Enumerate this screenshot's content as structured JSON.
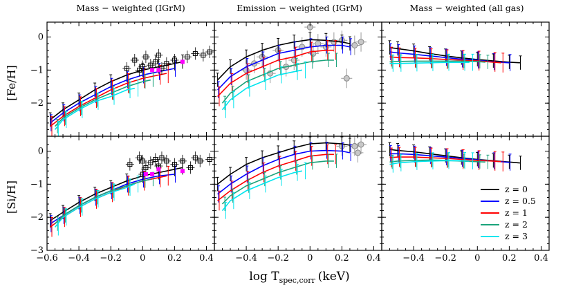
{
  "chart_data": {
    "type": "line",
    "xlabel": "log T",
    "xlabel_sub": "spec,corr",
    "xlabel_unit": "(keV)",
    "column_titles": [
      "Mass − weighted (IGrM)",
      "Emission − weighted (IGrM)",
      "Mass − weighted (all gas)"
    ],
    "row_labels": [
      "[Fe/H]",
      "[Si/H]"
    ],
    "xlim": [
      -0.6,
      0.45
    ],
    "ylim": [
      -3,
      0.45
    ],
    "xticks": [
      -0.6,
      -0.4,
      -0.2,
      0,
      0.2,
      0.4
    ],
    "xtick_labels_first": [
      "−0.6",
      "−0.4",
      "−0.2",
      "0",
      "0.2",
      "0.4"
    ],
    "xtick_labels_rest": [
      "−0.4",
      "−0.2",
      "0",
      "0.2",
      "0.4"
    ],
    "yticks": [
      -3,
      -2,
      -1,
      0
    ],
    "ytick_labels_top": [
      "−2",
      "−1",
      "0"
    ],
    "ytick_labels_bottom": [
      "−3",
      "−2",
      "−1",
      "0"
    ],
    "legend": [
      {
        "label": "z = 0",
        "color": "#000000"
      },
      {
        "label": "z = 0.5",
        "color": "#0000ff"
      },
      {
        "label": "z = 1",
        "color": "#ff0000"
      },
      {
        "label": "z = 2",
        "color": "#1aa37a"
      },
      {
        "label": "z = 3",
        "color": "#00e5ee"
      }
    ],
    "series_colors": [
      "#000000",
      "#0000ff",
      "#ff0000",
      "#1aa37a",
      "#00e5ee"
    ],
    "panels": [
      {
        "id": "fe-mass-igrm",
        "row": 0,
        "col": 0,
        "series": [
          {
            "x": [
              -0.58,
              -0.5,
              -0.4,
              -0.3,
              -0.2,
              -0.1,
              0,
              0.1,
              0.2,
              0.25
            ],
            "y": [
              -2.5,
              -2.2,
              -1.9,
              -1.6,
              -1.35,
              -1.15,
              -1.0,
              -0.9,
              -0.8,
              -0.75
            ]
          },
          {
            "x": [
              -0.58,
              -0.5,
              -0.4,
              -0.3,
              -0.2,
              -0.1,
              0,
              0.1,
              0.2
            ],
            "y": [
              -2.6,
              -2.3,
              -2.0,
              -1.75,
              -1.5,
              -1.3,
              -1.15,
              -1.05,
              -0.95
            ]
          },
          {
            "x": [
              -0.58,
              -0.5,
              -0.4,
              -0.3,
              -0.2,
              -0.1,
              0,
              0.1,
              0.15
            ],
            "y": [
              -2.7,
              -2.4,
              -2.1,
              -1.85,
              -1.6,
              -1.4,
              -1.25,
              -1.15,
              -1.1
            ]
          },
          {
            "x": [
              -0.55,
              -0.5,
              -0.4,
              -0.3,
              -0.2,
              -0.1,
              0,
              0.05
            ],
            "y": [
              -2.7,
              -2.45,
              -2.15,
              -1.9,
              -1.7,
              -1.5,
              -1.35,
              -1.3
            ]
          },
          {
            "x": [
              -0.55,
              -0.5,
              -0.4,
              -0.3,
              -0.2,
              -0.1,
              -0.05
            ],
            "y": [
              -2.8,
              -2.5,
              -2.2,
              -1.95,
              -1.8,
              -1.6,
              -1.55
            ]
          }
        ],
        "obs_black": [
          [
            -0.1,
            -0.95
          ],
          [
            -0.05,
            -0.7
          ],
          [
            0,
            -0.9
          ],
          [
            0.02,
            -0.6
          ],
          [
            0.05,
            -0.85
          ],
          [
            0.08,
            -0.75
          ],
          [
            0.1,
            -0.55
          ],
          [
            0.15,
            -0.8
          ],
          [
            0.2,
            -0.7
          ],
          [
            0.28,
            -0.6
          ],
          [
            0.33,
            -0.5
          ],
          [
            0.38,
            -0.55
          ],
          [
            0.42,
            -0.45
          ],
          [
            -0.02,
            -1.0
          ],
          [
            0.12,
            -0.95
          ]
        ],
        "obs_magenta": [
          [
            0.06,
            -1.0
          ],
          [
            0.1,
            -1.0
          ],
          [
            0.25,
            -0.75
          ]
        ]
      },
      {
        "id": "fe-emission-igrm",
        "row": 0,
        "col": 1,
        "series": [
          {
            "x": [
              -0.58,
              -0.5,
              -0.4,
              -0.3,
              -0.2,
              -0.1,
              0,
              0.1,
              0.2,
              0.25
            ],
            "y": [
              -1.3,
              -0.9,
              -0.6,
              -0.4,
              -0.25,
              -0.15,
              -0.08,
              -0.1,
              -0.15,
              -0.2
            ]
          },
          {
            "x": [
              -0.58,
              -0.5,
              -0.4,
              -0.3,
              -0.2,
              -0.1,
              0,
              0.1,
              0.2,
              0.25
            ],
            "y": [
              -1.6,
              -1.2,
              -0.9,
              -0.7,
              -0.5,
              -0.4,
              -0.3,
              -0.25,
              -0.25,
              -0.3
            ]
          },
          {
            "x": [
              -0.58,
              -0.5,
              -0.4,
              -0.3,
              -0.2,
              -0.1,
              0,
              0.1,
              0.15
            ],
            "y": [
              -1.8,
              -1.4,
              -1.1,
              -0.9,
              -0.7,
              -0.6,
              -0.45,
              -0.4,
              -0.4
            ]
          },
          {
            "x": [
              -0.55,
              -0.5,
              -0.4,
              -0.3,
              -0.2,
              -0.1,
              0,
              0.1,
              0.15
            ],
            "y": [
              -2.0,
              -1.7,
              -1.35,
              -1.15,
              -0.95,
              -0.85,
              -0.75,
              -0.7,
              -0.7
            ]
          },
          {
            "x": [
              -0.55,
              -0.5,
              -0.4,
              -0.3,
              -0.2,
              -0.1,
              -0.05
            ],
            "y": [
              -2.2,
              -1.9,
              -1.55,
              -1.35,
              -1.15,
              -1.05,
              -1.0
            ]
          }
        ],
        "obs_gray": [
          [
            -0.4,
            -1.0
          ],
          [
            -0.35,
            -0.8
          ],
          [
            -0.3,
            -0.6
          ],
          [
            -0.25,
            -1.1
          ],
          [
            -0.2,
            -0.4
          ],
          [
            -0.15,
            -0.9
          ],
          [
            -0.1,
            -0.7
          ],
          [
            -0.05,
            -0.3
          ],
          [
            0,
            0.3
          ],
          [
            0.02,
            -0.5
          ],
          [
            0.05,
            -0.2
          ],
          [
            0.1,
            -0.3
          ],
          [
            0.15,
            -0.15
          ],
          [
            0.2,
            -0.1
          ],
          [
            0.23,
            -1.25
          ],
          [
            0.28,
            -0.25
          ],
          [
            0.32,
            -0.15
          ]
        ]
      },
      {
        "id": "fe-mass-allgas",
        "row": 0,
        "col": 2,
        "series": [
          {
            "x": [
              -0.55,
              -0.5,
              -0.4,
              -0.3,
              -0.2,
              -0.1,
              0,
              0.1,
              0.2,
              0.27
            ],
            "y": [
              -0.32,
              -0.35,
              -0.42,
              -0.5,
              -0.57,
              -0.63,
              -0.68,
              -0.72,
              -0.76,
              -0.78
            ]
          },
          {
            "x": [
              -0.55,
              -0.5,
              -0.4,
              -0.3,
              -0.2,
              -0.1,
              0,
              0.1,
              0.2
            ],
            "y": [
              -0.45,
              -0.48,
              -0.52,
              -0.57,
              -0.62,
              -0.67,
              -0.7,
              -0.75,
              -0.78
            ]
          },
          {
            "x": [
              -0.55,
              -0.5,
              -0.4,
              -0.3,
              -0.2,
              -0.1,
              0,
              0.1,
              0.15
            ],
            "y": [
              -0.6,
              -0.62,
              -0.63,
              -0.65,
              -0.68,
              -0.7,
              -0.72,
              -0.76,
              -0.78
            ]
          },
          {
            "x": [
              -0.55,
              -0.5,
              -0.4,
              -0.3,
              -0.2,
              -0.1,
              0,
              0.05
            ],
            "y": [
              -0.75,
              -0.74,
              -0.73,
              -0.73,
              -0.73,
              -0.73,
              -0.74,
              -0.76
            ]
          },
          {
            "x": [
              -0.55,
              -0.5,
              -0.4,
              -0.3,
              -0.2,
              -0.1,
              -0.05
            ],
            "y": [
              -0.8,
              -0.8,
              -0.79,
              -0.78,
              -0.77,
              -0.77,
              -0.77
            ]
          }
        ]
      },
      {
        "id": "si-mass-igrm",
        "row": 1,
        "col": 0,
        "series": [
          {
            "x": [
              -0.58,
              -0.5,
              -0.4,
              -0.3,
              -0.2,
              -0.1,
              0,
              0.1,
              0.2,
              0.25
            ],
            "y": [
              -2.1,
              -1.85,
              -1.55,
              -1.3,
              -1.1,
              -0.9,
              -0.75,
              -0.65,
              -0.55,
              -0.5
            ]
          },
          {
            "x": [
              -0.58,
              -0.5,
              -0.4,
              -0.3,
              -0.2,
              -0.1,
              0,
              0.1,
              0.2
            ],
            "y": [
              -2.2,
              -1.95,
              -1.65,
              -1.4,
              -1.2,
              -1.0,
              -0.85,
              -0.75,
              -0.7
            ]
          },
          {
            "x": [
              -0.58,
              -0.5,
              -0.4,
              -0.3,
              -0.2,
              -0.1,
              0,
              0.1,
              0.15
            ],
            "y": [
              -2.3,
              -2.0,
              -1.7,
              -1.45,
              -1.25,
              -1.05,
              -0.9,
              -0.8,
              -0.75
            ]
          },
          {
            "x": [
              -0.55,
              -0.5,
              -0.4,
              -0.3,
              -0.2,
              -0.1,
              0,
              0.05
            ],
            "y": [
              -2.2,
              -1.95,
              -1.65,
              -1.4,
              -1.2,
              -1.05,
              -0.9,
              -0.85
            ]
          },
          {
            "x": [
              -0.55,
              -0.5,
              -0.4,
              -0.3,
              -0.2,
              -0.1,
              -0.05
            ],
            "y": [
              -2.3,
              -2.0,
              -1.7,
              -1.45,
              -1.25,
              -1.1,
              -1.0
            ]
          }
        ],
        "obs_black": [
          [
            -0.08,
            -0.4
          ],
          [
            -0.02,
            -0.2
          ],
          [
            0,
            -0.3
          ],
          [
            0.02,
            -0.5
          ],
          [
            0.05,
            -0.35
          ],
          [
            0.08,
            -0.25
          ],
          [
            0.1,
            -0.45
          ],
          [
            0.12,
            -0.2
          ],
          [
            0.15,
            -0.3
          ],
          [
            0.2,
            -0.4
          ],
          [
            0.25,
            -0.3
          ],
          [
            0.3,
            -0.5
          ],
          [
            0.33,
            -0.2
          ],
          [
            0.36,
            -0.3
          ],
          [
            0.42,
            -0.25
          ],
          [
            0.0,
            -0.7
          ]
        ],
        "obs_magenta": [
          [
            0.02,
            -0.7
          ],
          [
            0.06,
            -0.7
          ],
          [
            0.1,
            -0.55
          ],
          [
            0.25,
            -0.6
          ]
        ]
      },
      {
        "id": "si-emission-igrm",
        "row": 1,
        "col": 1,
        "series": [
          {
            "x": [
              -0.58,
              -0.5,
              -0.4,
              -0.3,
              -0.2,
              -0.1,
              0,
              0.1,
              0.2,
              0.25
            ],
            "y": [
              -1.0,
              -0.7,
              -0.4,
              -0.2,
              -0.05,
              0.1,
              0.22,
              0.25,
              0.22,
              0.18
            ]
          },
          {
            "x": [
              -0.58,
              -0.5,
              -0.4,
              -0.3,
              -0.2,
              -0.1,
              0,
              0.1,
              0.2,
              0.25
            ],
            "y": [
              -1.3,
              -1.0,
              -0.7,
              -0.45,
              -0.25,
              -0.1,
              0.0,
              0.02,
              0.0,
              -0.05
            ]
          },
          {
            "x": [
              -0.58,
              -0.5,
              -0.4,
              -0.3,
              -0.2,
              -0.1,
              0,
              0.1,
              0.15
            ],
            "y": [
              -1.5,
              -1.2,
              -0.9,
              -0.65,
              -0.45,
              -0.3,
              -0.15,
              -0.1,
              -0.1
            ]
          },
          {
            "x": [
              -0.55,
              -0.5,
              -0.4,
              -0.3,
              -0.2,
              -0.1,
              0,
              0.1,
              0.15
            ],
            "y": [
              -1.6,
              -1.35,
              -1.05,
              -0.85,
              -0.65,
              -0.5,
              -0.35,
              -0.3,
              -0.3
            ]
          },
          {
            "x": [
              -0.55,
              -0.5,
              -0.4,
              -0.3,
              -0.2,
              -0.1,
              -0.05
            ],
            "y": [
              -1.8,
              -1.5,
              -1.2,
              -1.0,
              -0.8,
              -0.65,
              -0.6
            ]
          }
        ],
        "obs_gray": [
          [
            0.28,
            0.15
          ],
          [
            0.32,
            0.2
          ],
          [
            0.3,
            -0.05
          ],
          [
            0.2,
            0.15
          ]
        ]
      },
      {
        "id": "si-mass-allgas",
        "row": 1,
        "col": 2,
        "series": [
          {
            "x": [
              -0.55,
              -0.5,
              -0.4,
              -0.3,
              -0.2,
              -0.1,
              0,
              0.1,
              0.2,
              0.27
            ],
            "y": [
              0.05,
              0.02,
              -0.02,
              -0.08,
              -0.14,
              -0.2,
              -0.25,
              -0.29,
              -0.33,
              -0.36
            ]
          },
          {
            "x": [
              -0.55,
              -0.5,
              -0.4,
              -0.3,
              -0.2,
              -0.1,
              0,
              0.1,
              0.2
            ],
            "y": [
              -0.08,
              -0.08,
              -0.1,
              -0.14,
              -0.18,
              -0.22,
              -0.26,
              -0.3,
              -0.34
            ]
          },
          {
            "x": [
              -0.55,
              -0.5,
              -0.4,
              -0.3,
              -0.2,
              -0.1,
              0,
              0.1,
              0.15
            ],
            "y": [
              -0.2,
              -0.18,
              -0.18,
              -0.2,
              -0.22,
              -0.25,
              -0.28,
              -0.3,
              -0.32
            ]
          },
          {
            "x": [
              -0.55,
              -0.5,
              -0.4,
              -0.3,
              -0.2,
              -0.1,
              0,
              0.05
            ],
            "y": [
              -0.33,
              -0.3,
              -0.28,
              -0.27,
              -0.28,
              -0.3,
              -0.32,
              -0.33
            ]
          },
          {
            "x": [
              -0.55,
              -0.5,
              -0.4,
              -0.3,
              -0.2,
              -0.1,
              -0.05
            ],
            "y": [
              -0.4,
              -0.36,
              -0.32,
              -0.3,
              -0.29,
              -0.29,
              -0.3
            ]
          }
        ]
      }
    ]
  }
}
